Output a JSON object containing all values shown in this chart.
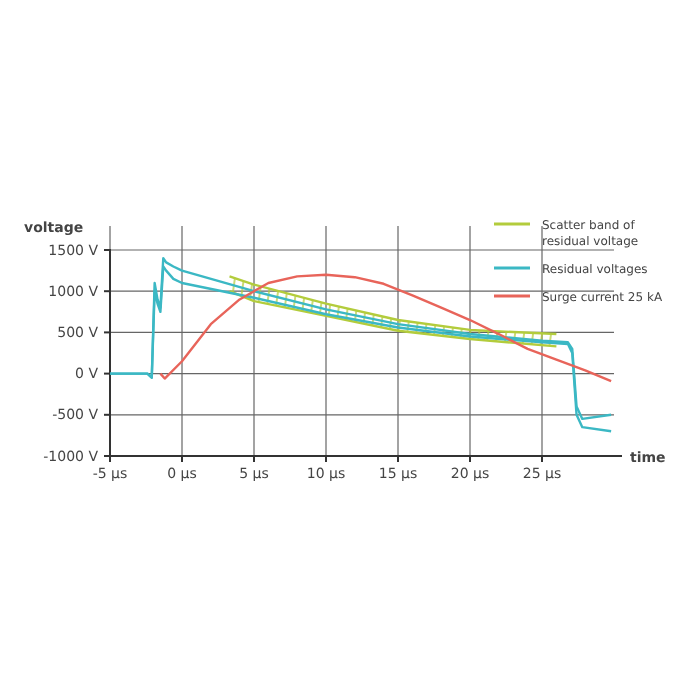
{
  "chart_data": {
    "type": "line",
    "ylabel": "voltage",
    "xlabel": "time",
    "xlim": [
      -5,
      30
    ],
    "xticks": [
      {
        "value": -5,
        "label": "-5 µs"
      },
      {
        "value": 0,
        "label": "0 µs"
      },
      {
        "value": 5,
        "label": "5 µs"
      },
      {
        "value": 10,
        "label": "10 µs"
      },
      {
        "value": 15,
        "label": "15 µs"
      },
      {
        "value": 20,
        "label": "20 µs"
      },
      {
        "value": 25,
        "label": "25 µs"
      }
    ],
    "ylim": [
      -1000,
      1500
    ],
    "yticks": [
      {
        "value": -1000,
        "label": "-1000 V"
      },
      {
        "value": -500,
        "label": "-500 V"
      },
      {
        "value": 0,
        "label": "0 V"
      },
      {
        "value": 500,
        "label": "500 V"
      },
      {
        "value": 1000,
        "label": "1000 V"
      },
      {
        "value": 1500,
        "label": "1500 V"
      }
    ],
    "grid": true,
    "legend": "top right",
    "series": [
      {
        "name": "Scatter band of residual voltage",
        "color": "#b3cc3c",
        "x": [
          3.3,
          5,
          10,
          15,
          20,
          26
        ],
        "values": [
          1180,
          1080,
          850,
          650,
          530,
          480
        ]
      },
      {
        "color": "#b3cc3c",
        "x": [
          3.3,
          5,
          10,
          15,
          20,
          26
        ],
        "values": [
          1000,
          880,
          700,
          520,
          420,
          330
        ]
      },
      {
        "name": "Residual voltages",
        "color": "#3bb8c4",
        "x": [
          -5,
          -2.4,
          -2.1,
          -1.9,
          -1.7,
          -1.5,
          -1.3,
          -1.1,
          -0.6,
          0,
          5,
          10,
          15,
          20,
          25,
          26.8,
          27.1,
          27.4,
          27.8,
          29.8
        ],
        "values": [
          0,
          0,
          -50,
          1100,
          900,
          800,
          1400,
          1350,
          1300,
          1250,
          1000,
          780,
          600,
          480,
          400,
          380,
          300,
          -400,
          -550,
          -500
        ]
      },
      {
        "color": "#3bb8c4",
        "x": [
          -5,
          -2.4,
          -2.1,
          -1.9,
          -1.7,
          -1.5,
          -1.3,
          -1.1,
          -0.6,
          0,
          5,
          10,
          15,
          20,
          25,
          26.8,
          27.1,
          27.4,
          27.8,
          29.8
        ],
        "values": [
          0,
          0,
          -50,
          1000,
          850,
          750,
          1300,
          1250,
          1150,
          1100,
          920,
          720,
          560,
          450,
          380,
          360,
          250,
          -500,
          -650,
          -700
        ]
      },
      {
        "name": "Surge current 25 kA",
        "color": "#e8645a",
        "x": [
          -1.5,
          -1.2,
          0,
          2,
          4,
          6,
          8,
          10,
          12,
          14,
          16,
          18,
          20,
          22,
          24,
          26,
          28,
          29.8
        ],
        "values": [
          0,
          -60,
          150,
          600,
          900,
          1100,
          1180,
          1200,
          1170,
          1090,
          950,
          800,
          650,
          480,
          300,
          170,
          40,
          -90
        ]
      }
    ]
  }
}
